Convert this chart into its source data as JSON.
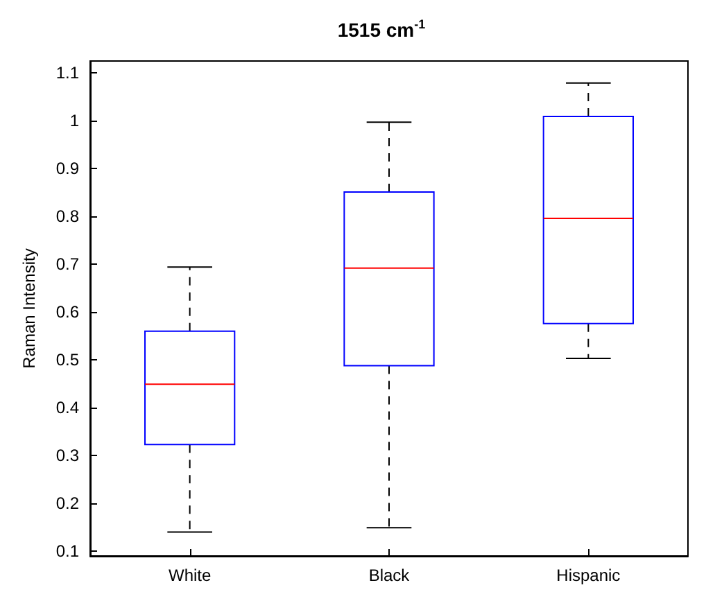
{
  "chart_data": {
    "type": "box",
    "title": "1515 cm$^{-1}$",
    "ylabel": "Raman Intensity",
    "categories": [
      "White",
      "Black",
      "Hispanic"
    ],
    "boxes": [
      {
        "low": 0.14,
        "q1": 0.323,
        "median": 0.449,
        "q3": 0.56,
        "high": 0.694
      },
      {
        "low": 0.149,
        "q1": 0.488,
        "median": 0.692,
        "q3": 0.851,
        "high": 0.997
      },
      {
        "low": 0.503,
        "q1": 0.576,
        "median": 0.796,
        "q3": 1.009,
        "high": 1.079
      }
    ],
    "color": "#0000ff",
    "ylim": [
      0.09,
      1.125
    ],
    "yticks": [
      0.1,
      0.2,
      0.3,
      0.4,
      0.5,
      0.6,
      0.7,
      0.8,
      0.9,
      1,
      1.1
    ],
    "grid": false
  }
}
